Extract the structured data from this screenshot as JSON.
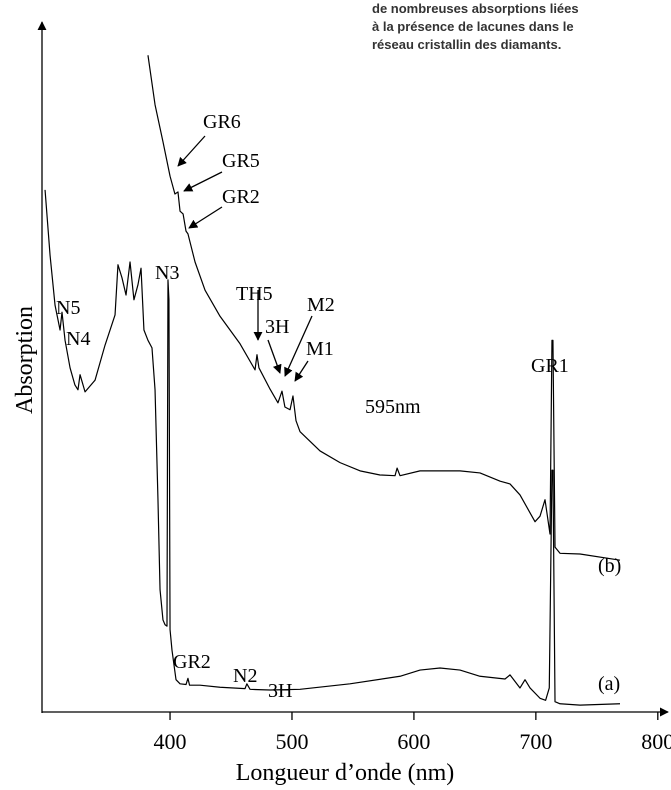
{
  "chart_data": {
    "type": "line",
    "caption": [
      "de nombreuses absorptions liées",
      "à la présence de lacunes dans le",
      "réseau cristallin des diamants."
    ],
    "xlabel": "Longueur d’onde (nm)",
    "ylabel": "Absorption",
    "xlim": [
      295,
      810
    ],
    "ylim": [
      0,
      100
    ],
    "xticks": [
      400,
      500,
      600,
      700,
      800
    ],
    "annotations": [
      "GR6",
      "GR5",
      "GR2",
      "TH5",
      "3H",
      "M2",
      "M1",
      "595nm",
      "GR1",
      "N3",
      "N5",
      "N4",
      "GR2",
      "N2",
      "3H"
    ],
    "series": [
      {
        "name": "(a)",
        "color": "#000000",
        "x": [
          297.5,
          301.6,
          305.7,
          309.8,
          311.4,
          313.9,
          318,
          322,
          324.5,
          326.2,
          330.3,
          338.5,
          346.7,
          354.9,
          357.3,
          360.6,
          363.9,
          367.2,
          370.4,
          373.7,
          376.2,
          378.6,
          381.9,
          385.2,
          387.7,
          390.1,
          391.8,
          394.2,
          395.9,
          397.5,
          398.3,
          399.1,
          400,
          401.6,
          404.9,
          408.2,
          413.1,
          414.7,
          416,
          424.6,
          441,
          461.5,
          463,
          465.6,
          482,
          506.6,
          547.6,
          588.6,
          605,
          621.4,
          637.8,
          654.2,
          674.7,
          678.8,
          687,
          691.1,
          695.2,
          703.4,
          708,
          711,
          713.2,
          714,
          715.7,
          719.8,
          736.2,
          769
        ],
        "values": [
          76.0,
          66.5,
          59.2,
          55.6,
          58.2,
          54.1,
          50.1,
          47.6,
          46.9,
          49.1,
          46.6,
          48.3,
          53.4,
          57.8,
          65.1,
          63.2,
          60.7,
          65.5,
          60.0,
          62.2,
          64.6,
          55.6,
          54.1,
          53.0,
          46.9,
          30.9,
          17.8,
          13.4,
          12.7,
          12.5,
          62.9,
          60.0,
          12.0,
          9.0,
          4.7,
          4.1,
          4.0,
          4.9,
          3.9,
          3.9,
          3.6,
          3.4,
          4.1,
          3.3,
          3.2,
          3.3,
          4.1,
          5.2,
          6.1,
          6.4,
          6.1,
          5.2,
          4.8,
          5.4,
          3.5,
          4.7,
          3.5,
          2.0,
          1.7,
          3.5,
          35.2,
          35.2,
          1.5,
          1.2,
          1.0,
          1.2
        ]
      },
      {
        "name": "(b)",
        "color": "#000000",
        "x": [
          381.9,
          387.7,
          394.2,
          400,
          404,
          406.5,
          408.2,
          410.7,
          413.1,
          414.7,
          420.5,
          428.7,
          441,
          457.4,
          469.7,
          471.3,
          472.9,
          482,
          488.5,
          491.8,
          494.2,
          498.4,
          500.8,
          503.3,
          506.6,
          523,
          539.4,
          555.8,
          572.2,
          584.5,
          586.2,
          588.6,
          605,
          621.4,
          637.8,
          654.2,
          670.7,
          678.8,
          687,
          695.2,
          699.3,
          703.4,
          707.5,
          711.6,
          713.2,
          714,
          715.7,
          719.8,
          736.2,
          769
        ],
        "values": [
          95.6,
          88.4,
          83.0,
          78.0,
          75.4,
          75.7,
          72.9,
          72.5,
          70.0,
          69.6,
          65.5,
          61.4,
          57.6,
          53.6,
          49.8,
          52.0,
          50.1,
          47.0,
          45.0,
          46.7,
          44.4,
          44.0,
          46.0,
          42.4,
          40.8,
          38.0,
          36.3,
          35.1,
          34.5,
          34.4,
          35.5,
          34.4,
          35.1,
          35.1,
          35.1,
          34.8,
          33.6,
          33.2,
          31.6,
          29.0,
          27.7,
          28.5,
          30.9,
          25.9,
          54.1,
          54.1,
          24.0,
          23.1,
          23.0,
          22.1
        ]
      }
    ]
  }
}
